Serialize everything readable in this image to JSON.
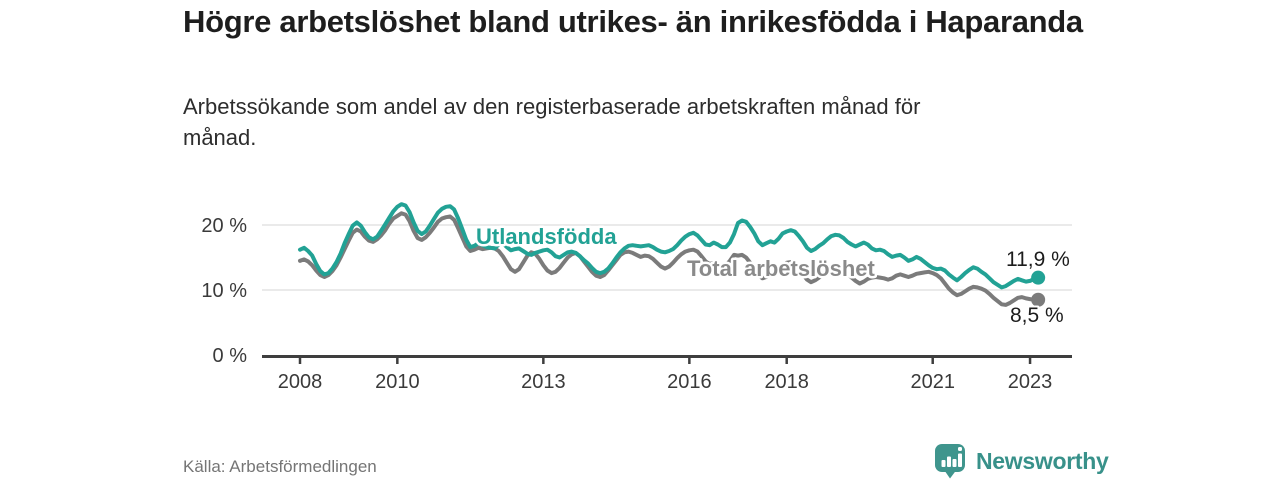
{
  "header": {
    "title": "Högre arbetslöshet bland utrikes- än inrikesfödda i Haparanda",
    "subtitle": "Arbetssökande som andel av den registerbaserade arbetskraften månad för månad."
  },
  "footer": {
    "source": "Källa: Arbetsförmedlingen",
    "brand": "Newsworthy"
  },
  "icons": {
    "brand_icon": "newsworthy-speech-bubble-bar-chart"
  },
  "colors": {
    "accent_teal": "#22a295",
    "line_gray": "#7b7b7b",
    "series_label_gray": "#8a8a8a",
    "value_label": "#1c1c1c",
    "grid": "#e4e4e4",
    "axis": "#3e3e3e",
    "tick_text": "#3a3a3a",
    "brand_teal": "#3f958d"
  },
  "chart_data": {
    "type": "line",
    "title": "Högre arbetslöshet bland utrikes- än inrikesfödda i Haparanda",
    "subtitle": "Arbetssökande som andel av den registerbaserade arbetskraften månad för månad.",
    "xlabel": "",
    "ylabel": "",
    "frequency": "monthly",
    "x_start": "2008-01",
    "x_end": "2023-03",
    "ylim": [
      0,
      24.5
    ],
    "grid": "horizontal",
    "legend_position": "inline-labels",
    "yticks": [
      {
        "value": 0,
        "label": "0 %"
      },
      {
        "value": 10,
        "label": "10 %"
      },
      {
        "value": 20,
        "label": "20 %"
      }
    ],
    "xticks": [
      {
        "year": 2008,
        "label": "2008"
      },
      {
        "year": 2010,
        "label": "2010"
      },
      {
        "year": 2013,
        "label": "2013"
      },
      {
        "year": 2016,
        "label": "2016"
      },
      {
        "year": 2018,
        "label": "2018"
      },
      {
        "year": 2021,
        "label": "2021"
      },
      {
        "year": 2023,
        "label": "2023"
      }
    ],
    "series": [
      {
        "name": "Utlandsfödda",
        "color": "#22a295",
        "label_color": "#22a295",
        "end_label": "11,9 %",
        "end_value": 11.9,
        "values": [
          16.2,
          16.5,
          16.0,
          15.3,
          14.0,
          12.9,
          12.4,
          12.6,
          13.3,
          14.3,
          15.6,
          17.2,
          18.6,
          19.9,
          20.4,
          19.9,
          18.9,
          18.1,
          17.8,
          18.2,
          19.1,
          20.1,
          21.1,
          22.1,
          22.8,
          23.2,
          23.0,
          22.0,
          20.4,
          19.1,
          18.6,
          19.0,
          19.9,
          20.9,
          21.9,
          22.5,
          22.8,
          22.9,
          22.4,
          21.0,
          19.4,
          17.7,
          16.6,
          16.8,
          17.2,
          16.9,
          16.6,
          16.5,
          16.4,
          17.0,
          17.2,
          16.6,
          16.1,
          16.3,
          16.4,
          16.0,
          15.6,
          15.4,
          15.7,
          15.9,
          16.1,
          16.2,
          15.8,
          15.2,
          15.0,
          15.4,
          15.8,
          15.9,
          15.7,
          15.2,
          14.6,
          14.1,
          13.4,
          12.8,
          12.6,
          12.8,
          13.3,
          14.1,
          15.0,
          15.8,
          16.4,
          16.8,
          16.9,
          16.8,
          16.7,
          16.8,
          16.9,
          16.6,
          16.2,
          15.9,
          15.8,
          16.0,
          16.3,
          16.9,
          17.6,
          18.2,
          18.6,
          18.8,
          18.4,
          17.7,
          17.0,
          16.9,
          17.3,
          17.0,
          16.6,
          16.6,
          17.3,
          18.6,
          20.3,
          20.7,
          20.5,
          19.7,
          18.7,
          17.5,
          16.9,
          17.2,
          17.5,
          17.3,
          17.9,
          18.7,
          19.0,
          19.2,
          19.0,
          18.3,
          17.5,
          16.5,
          16.0,
          16.3,
          16.8,
          17.2,
          17.8,
          18.3,
          18.5,
          18.4,
          18.0,
          17.4,
          17.0,
          16.7,
          17.0,
          17.3,
          17.0,
          16.4,
          16.1,
          16.2,
          16.0,
          15.5,
          15.1,
          15.3,
          15.4,
          15.0,
          14.5,
          14.7,
          15.1,
          14.8,
          14.3,
          13.8,
          13.4,
          13.2,
          13.3,
          13.0,
          12.4,
          11.9,
          11.5,
          12.0,
          12.6,
          13.1,
          13.5,
          13.3,
          12.8,
          12.4,
          11.8,
          11.2,
          10.8,
          10.4,
          10.6,
          11.0,
          11.4,
          11.7,
          11.5,
          11.3,
          11.4,
          11.7,
          11.9
        ]
      },
      {
        "name": "Total arbetslöshet",
        "color": "#7b7b7b",
        "label_color": "#8a8a8a",
        "end_label": "8,5 %",
        "end_value": 8.5,
        "values": [
          14.5,
          14.7,
          14.4,
          13.8,
          13.0,
          12.3,
          12.0,
          12.3,
          12.9,
          13.8,
          15.0,
          16.3,
          17.6,
          18.8,
          19.3,
          19.0,
          18.2,
          17.6,
          17.4,
          17.8,
          18.4,
          19.2,
          20.2,
          21.0,
          21.4,
          21.8,
          21.6,
          20.6,
          19.1,
          18.0,
          17.7,
          18.1,
          18.8,
          19.6,
          20.5,
          21.0,
          21.2,
          21.3,
          20.8,
          19.5,
          18.1,
          16.7,
          16.0,
          16.2,
          16.5,
          16.3,
          16.4,
          16.5,
          16.4,
          16.0,
          15.2,
          14.2,
          13.2,
          12.8,
          13.2,
          14.2,
          15.2,
          15.8,
          15.6,
          14.8,
          13.8,
          13.0,
          12.6,
          12.8,
          13.4,
          14.2,
          15.0,
          15.5,
          15.7,
          15.2,
          14.4,
          13.6,
          12.8,
          12.2,
          12.0,
          12.3,
          13.0,
          13.8,
          14.6,
          15.4,
          15.8,
          15.9,
          15.7,
          15.4,
          15.1,
          15.3,
          15.2,
          14.8,
          14.2,
          13.6,
          13.3,
          13.6,
          14.2,
          14.9,
          15.5,
          15.9,
          16.1,
          16.2,
          15.9,
          15.2,
          14.4,
          14.0,
          14.2,
          14.0,
          13.7,
          13.8,
          14.5,
          15.4,
          15.3,
          15.4,
          15.0,
          14.2,
          13.2,
          12.3,
          11.8,
          12.0,
          12.4,
          12.6,
          13.2,
          13.8,
          14.2,
          14.3,
          14.0,
          13.3,
          12.4,
          11.6,
          11.2,
          11.5,
          11.9,
          12.3,
          12.8,
          13.2,
          13.4,
          13.3,
          13.0,
          12.5,
          11.9,
          11.4,
          11.0,
          11.3,
          11.7,
          11.9,
          12.0,
          11.9,
          11.8,
          11.6,
          11.8,
          12.2,
          12.4,
          12.2,
          12.0,
          12.2,
          12.5,
          12.6,
          12.7,
          12.8,
          12.6,
          12.3,
          11.8,
          11.0,
          10.2,
          9.6,
          9.2,
          9.4,
          9.8,
          10.2,
          10.5,
          10.4,
          10.2,
          9.9,
          9.4,
          8.8,
          8.3,
          7.8,
          7.7,
          8.0,
          8.4,
          8.8,
          8.9,
          8.7,
          8.6,
          8.5,
          8.5
        ]
      }
    ]
  }
}
